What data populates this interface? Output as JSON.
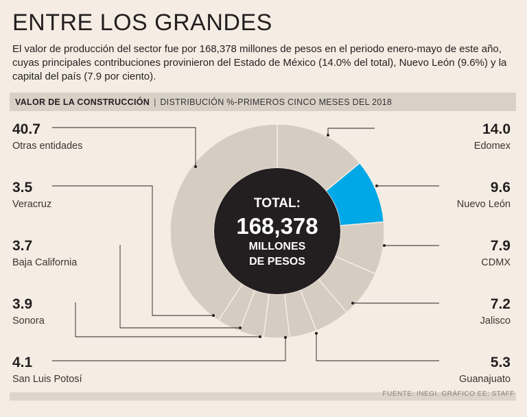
{
  "title": "ENTRE LOS GRANDES",
  "intro": "El valor de producción del sector fue por 168,378 millones de pesos en el periodo enero-mayo de este año, cuyas principales contribuciones provinieron del Estado de México (14.0% del total), Nuevo León (9.6%) y la capital del país (7.9 por ciento).",
  "header": {
    "title": "VALOR DE LA CONSTRUCCIÓN",
    "separator": "|",
    "subtitle": "DISTRIBUCIÓN %-PRIMEROS CINCO MESES DEL 2018"
  },
  "source": "FUENTE: INEGI. GRÁFICO EE: STAFF",
  "chart_data": {
    "type": "pie",
    "donut": true,
    "center": {
      "line1": "TOTAL:",
      "line2": "168,378",
      "line3": "MILLONES",
      "line4": "DE PESOS"
    },
    "slices": [
      {
        "label": "Edomex",
        "value": 14.0,
        "display": "14.0",
        "highlight": false
      },
      {
        "label": "Nuevo León",
        "value": 9.6,
        "display": "9.6",
        "highlight": true
      },
      {
        "label": "CDMX",
        "value": 7.9,
        "display": "7.9",
        "highlight": false
      },
      {
        "label": "Jalisco",
        "value": 7.2,
        "display": "7.2",
        "highlight": false
      },
      {
        "label": "Guanajuato",
        "value": 5.3,
        "display": "5.3",
        "highlight": false
      },
      {
        "label": "San Luis Potosí",
        "value": 4.1,
        "display": "4.1",
        "highlight": false
      },
      {
        "label": "Sonora",
        "value": 3.9,
        "display": "3.9",
        "highlight": false
      },
      {
        "label": "Baja California",
        "value": 3.7,
        "display": "3.7",
        "highlight": false
      },
      {
        "label": "Veracruz",
        "value": 3.5,
        "display": "3.5",
        "highlight": false
      },
      {
        "label": "Otras entidades",
        "value": 40.7,
        "display": "40.7",
        "highlight": false
      }
    ],
    "colors": {
      "slice": "#d5ccc2",
      "highlight": "#00a8e8",
      "divider": "#f5ede3",
      "center": "#231f20",
      "leader": "#231f20"
    }
  }
}
